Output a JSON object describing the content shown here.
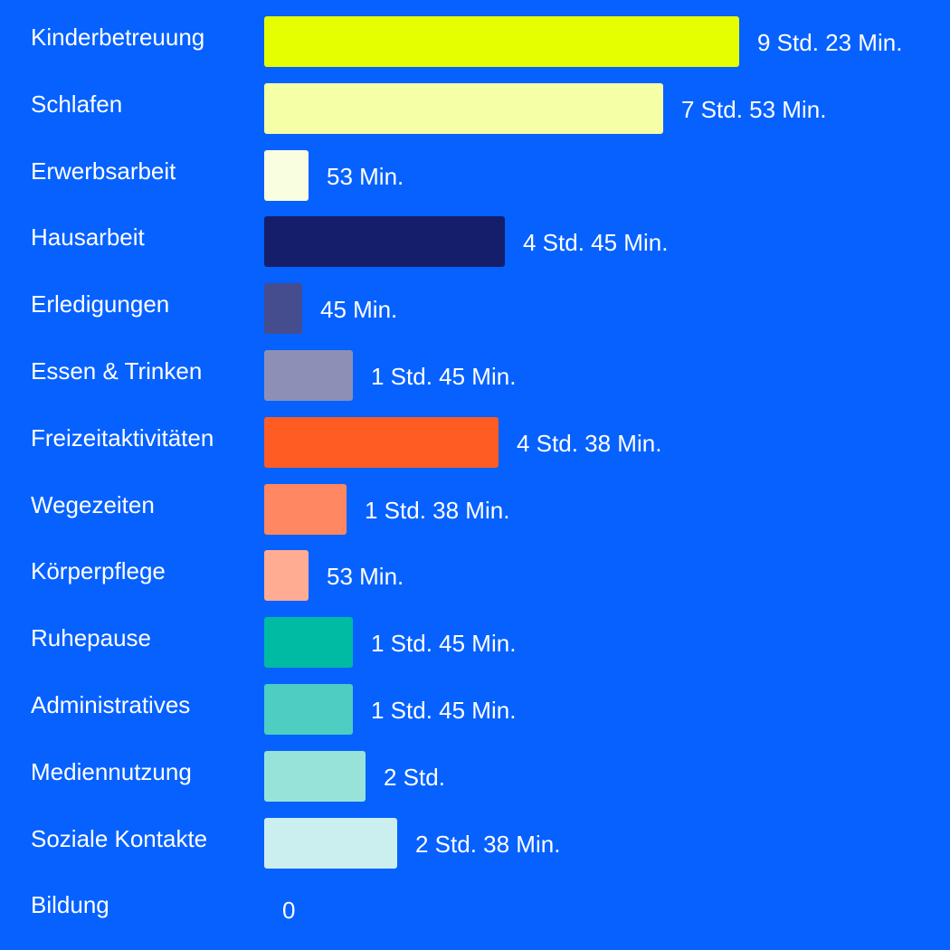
{
  "chart_data": {
    "type": "bar",
    "orientation": "horizontal",
    "unit": "minutes",
    "categories": [
      "Kinderbetreuung",
      "Schlafen",
      "Erwerbsarbeit",
      "Hausarbeit",
      "Erledigungen",
      "Essen & Trinken",
      "Freizeitaktivitäten",
      "Wegezeiten",
      "Körperpflege",
      "Ruhepause",
      "Administratives",
      "Mediennutzung",
      "Soziale Kontakte",
      "Bildung"
    ],
    "values": [
      563,
      473,
      53,
      285,
      45,
      105,
      278,
      98,
      53,
      105,
      105,
      120,
      158,
      0
    ],
    "value_labels": [
      "9 Std. 23 Min.",
      "7 Std. 53 Min.",
      "53 Min.",
      "4 Std. 45 Min.",
      "45 Min.",
      "1 Std. 45 Min.",
      "4 Std. 38 Min.",
      "1 Std. 38 Min.",
      "53 Min.",
      "1 Std. 45 Min.",
      "1 Std. 45 Min.",
      "2 Std.",
      "2 Std. 38 Min.",
      "0"
    ],
    "colors": [
      "#e5ff00",
      "#f4ffa6",
      "#fafee0",
      "#141e6b",
      "#454d8f",
      "#8e8fb6",
      "#ff5c23",
      "#ff8761",
      "#ffac92",
      "#00bba4",
      "#4ecec3",
      "#97e3da",
      "#cbefee",
      "#ffffff"
    ],
    "background": "#0661ff",
    "grid": false,
    "legend": "none"
  }
}
